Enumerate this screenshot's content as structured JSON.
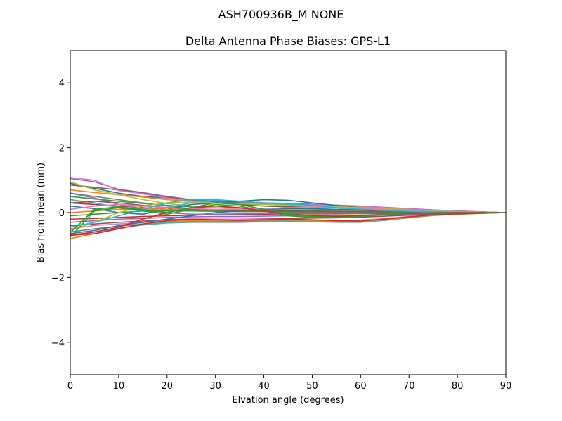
{
  "suptitle": "ASH700936B_M    NONE",
  "chart_data": {
    "type": "line",
    "title": "Delta Antenna Phase Biases: GPS-L1",
    "xlabel": "Elvation angle (degrees)",
    "ylabel": "Bias from mean (mm)",
    "xlim": [
      0,
      90
    ],
    "ylim": [
      -5,
      5
    ],
    "xticks": [
      0,
      10,
      20,
      30,
      40,
      50,
      60,
      70,
      80,
      90
    ],
    "yticks": [
      -4,
      -2,
      0,
      2,
      4
    ],
    "grid": false,
    "legend": "none",
    "x": [
      0,
      5,
      10,
      15,
      20,
      25,
      30,
      35,
      40,
      45,
      50,
      55,
      60,
      65,
      70,
      75,
      80,
      85,
      90
    ],
    "series": [
      {
        "color": "#1f77b4",
        "values": [
          0.9,
          0.75,
          0.6,
          0.5,
          0.45,
          0.38,
          0.32,
          0.3,
          0.28,
          0.27,
          0.25,
          0.22,
          0.18,
          0.15,
          0.12,
          0.08,
          0.05,
          0.02,
          0.0
        ]
      },
      {
        "color": "#ff7f0e",
        "values": [
          0.7,
          0.62,
          0.55,
          0.48,
          0.4,
          0.35,
          0.3,
          0.27,
          0.25,
          0.24,
          0.22,
          0.2,
          0.17,
          0.14,
          0.11,
          0.07,
          0.04,
          0.02,
          0.0
        ]
      },
      {
        "color": "#2ca02c",
        "values": [
          0.5,
          0.42,
          0.35,
          0.28,
          0.22,
          0.18,
          0.15,
          0.14,
          0.13,
          0.12,
          0.11,
          0.1,
          0.09,
          0.07,
          0.05,
          0.03,
          0.02,
          0.01,
          0.0
        ]
      },
      {
        "color": "#d62728",
        "values": [
          0.3,
          0.25,
          0.2,
          0.15,
          0.1,
          0.08,
          0.06,
          0.05,
          0.05,
          0.05,
          0.04,
          0.04,
          0.03,
          0.03,
          0.02,
          0.02,
          0.01,
          0.0,
          0.0
        ]
      },
      {
        "color": "#9467bd",
        "values": [
          1.05,
          0.95,
          0.72,
          0.62,
          0.5,
          0.4,
          0.35,
          0.32,
          0.3,
          0.28,
          0.26,
          0.23,
          0.2,
          0.16,
          0.12,
          0.08,
          0.05,
          0.02,
          0.0
        ]
      },
      {
        "color": "#8c564b",
        "values": [
          0.85,
          0.78,
          0.7,
          0.6,
          0.48,
          0.38,
          0.3,
          0.25,
          0.2,
          0.18,
          0.16,
          0.15,
          0.13,
          0.11,
          0.09,
          0.06,
          0.04,
          0.02,
          0.0
        ]
      },
      {
        "color": "#e377c2",
        "values": [
          1.08,
          1.0,
          0.68,
          0.58,
          0.45,
          0.36,
          0.3,
          0.28,
          0.26,
          0.25,
          0.24,
          0.22,
          0.19,
          0.15,
          0.11,
          0.07,
          0.04,
          0.02,
          0.0
        ]
      },
      {
        "color": "#7f7f7f",
        "values": [
          0.6,
          0.5,
          0.4,
          0.3,
          0.2,
          0.12,
          0.08,
          0.05,
          0.03,
          0.02,
          0.02,
          0.02,
          0.02,
          0.02,
          0.01,
          0.01,
          0.01,
          0.0,
          0.0
        ]
      },
      {
        "color": "#bcbd22",
        "values": [
          0.95,
          0.7,
          0.55,
          0.4,
          0.28,
          0.2,
          0.15,
          0.12,
          0.1,
          0.08,
          0.07,
          0.06,
          0.05,
          0.04,
          0.03,
          0.02,
          0.01,
          0.0,
          0.0
        ]
      },
      {
        "color": "#17becf",
        "values": [
          0.4,
          0.3,
          0.15,
          0.05,
          0.15,
          0.3,
          0.38,
          0.35,
          0.3,
          0.25,
          0.2,
          0.15,
          0.1,
          0.07,
          0.05,
          0.03,
          0.02,
          0.01,
          0.0
        ]
      },
      {
        "color": "#1f77b4",
        "values": [
          0.2,
          0.12,
          0.0,
          -0.05,
          0.1,
          0.25,
          0.3,
          0.35,
          0.4,
          0.38,
          0.3,
          0.22,
          0.15,
          0.1,
          0.06,
          0.03,
          0.02,
          0.01,
          0.0
        ]
      },
      {
        "color": "#ff7f0e",
        "values": [
          0.0,
          0.05,
          0.1,
          0.12,
          0.1,
          0.08,
          0.06,
          0.05,
          0.04,
          0.04,
          0.03,
          0.03,
          0.03,
          0.02,
          0.02,
          0.01,
          0.01,
          0.0,
          0.0
        ]
      },
      {
        "color": "#2ca02c",
        "values": [
          -0.1,
          -0.05,
          0.0,
          0.05,
          0.05,
          0.05,
          0.04,
          0.03,
          0.03,
          0.02,
          0.02,
          0.02,
          0.02,
          0.01,
          0.01,
          0.01,
          0.0,
          0.0,
          0.0
        ]
      },
      {
        "color": "#d62728",
        "values": [
          -0.2,
          -0.18,
          -0.15,
          -0.12,
          -0.1,
          -0.08,
          -0.06,
          -0.05,
          -0.05,
          -0.04,
          -0.04,
          -0.04,
          -0.03,
          -0.03,
          -0.02,
          -0.02,
          -0.01,
          0.0,
          0.0
        ]
      },
      {
        "color": "#9467bd",
        "values": [
          -0.3,
          -0.25,
          -0.2,
          -0.18,
          -0.15,
          -0.13,
          -0.12,
          -0.12,
          -0.11,
          -0.1,
          -0.1,
          -0.09,
          -0.08,
          -0.07,
          -0.05,
          -0.03,
          -0.02,
          -0.01,
          0.0
        ]
      },
      {
        "color": "#8c564b",
        "values": [
          -0.4,
          -0.35,
          -0.3,
          -0.26,
          -0.22,
          -0.2,
          -0.2,
          -0.2,
          -0.19,
          -0.18,
          -0.17,
          -0.16,
          -0.14,
          -0.11,
          -0.08,
          -0.05,
          -0.03,
          -0.01,
          0.0
        ]
      },
      {
        "color": "#e377c2",
        "values": [
          -0.5,
          -0.4,
          -0.35,
          -0.3,
          -0.25,
          -0.22,
          -0.2,
          -0.2,
          -0.2,
          -0.22,
          -0.24,
          -0.25,
          -0.23,
          -0.18,
          -0.12,
          -0.07,
          -0.04,
          -0.02,
          0.0
        ]
      },
      {
        "color": "#7f7f7f",
        "values": [
          -0.6,
          -0.5,
          -0.42,
          -0.35,
          -0.3,
          -0.28,
          -0.28,
          -0.27,
          -0.26,
          -0.26,
          -0.27,
          -0.28,
          -0.27,
          -0.21,
          -0.14,
          -0.08,
          -0.05,
          -0.02,
          0.0
        ]
      },
      {
        "color": "#bcbd22",
        "values": [
          -0.55,
          -0.3,
          0.0,
          0.2,
          0.3,
          0.32,
          0.3,
          0.28,
          0.25,
          0.22,
          0.2,
          0.18,
          0.15,
          0.12,
          0.08,
          0.05,
          0.03,
          0.01,
          0.0
        ]
      },
      {
        "color": "#17becf",
        "values": [
          -0.7,
          -0.6,
          -0.48,
          -0.38,
          -0.32,
          -0.3,
          -0.3,
          -0.3,
          -0.28,
          -0.27,
          -0.28,
          -0.3,
          -0.3,
          -0.24,
          -0.16,
          -0.09,
          -0.05,
          -0.02,
          0.0
        ]
      },
      {
        "color": "#1f77b4",
        "values": [
          -0.65,
          -0.55,
          -0.4,
          -0.3,
          -0.2,
          -0.1,
          0.0,
          0.05,
          0.1,
          0.12,
          0.12,
          0.1,
          0.08,
          0.06,
          0.04,
          0.02,
          0.01,
          0.0,
          0.0
        ]
      },
      {
        "color": "#ff7f0e",
        "values": [
          -0.8,
          -0.65,
          -0.5,
          -0.35,
          -0.28,
          -0.25,
          -0.25,
          -0.25,
          -0.24,
          -0.24,
          -0.25,
          -0.27,
          -0.28,
          -0.22,
          -0.15,
          -0.08,
          -0.05,
          -0.02,
          0.0
        ]
      },
      {
        "color": "#2ca02c",
        "values": [
          -0.75,
          0.05,
          0.15,
          0.05,
          -0.05,
          0.1,
          0.25,
          0.2,
          0.05,
          -0.1,
          -0.15,
          -0.15,
          -0.1,
          -0.05,
          -0.02,
          0.0,
          0.0,
          0.0,
          0.0
        ]
      },
      {
        "color": "#d62728",
        "values": [
          -0.7,
          -0.65,
          -0.5,
          -0.35,
          -0.25,
          -0.2,
          -0.22,
          -0.24,
          -0.22,
          -0.2,
          -0.22,
          -0.25,
          -0.26,
          -0.2,
          -0.13,
          -0.07,
          -0.04,
          -0.02,
          0.0
        ]
      },
      {
        "color": "#9467bd",
        "values": [
          0.6,
          0.45,
          0.25,
          0.1,
          0.0,
          -0.05,
          -0.05,
          -0.04,
          -0.03,
          -0.02,
          -0.02,
          -0.02,
          -0.02,
          -0.01,
          -0.01,
          0.0,
          0.0,
          0.0,
          0.0
        ]
      },
      {
        "color": "#8c564b",
        "values": [
          0.3,
          0.35,
          0.3,
          0.22,
          0.15,
          0.1,
          0.08,
          0.06,
          0.05,
          0.05,
          0.05,
          0.04,
          0.04,
          0.03,
          0.02,
          0.01,
          0.01,
          0.0,
          0.0
        ]
      },
      {
        "color": "#e377c2",
        "values": [
          0.1,
          0.2,
          0.25,
          0.2,
          0.15,
          0.12,
          0.1,
          0.1,
          0.12,
          0.15,
          0.16,
          0.15,
          0.12,
          0.09,
          0.06,
          0.03,
          0.02,
          0.01,
          0.0
        ]
      },
      {
        "color": "#17becf",
        "values": [
          -0.45,
          -0.3,
          -0.1,
          0.1,
          0.3,
          0.4,
          0.4,
          0.35,
          0.3,
          0.28,
          0.22,
          0.15,
          0.1,
          0.06,
          0.04,
          0.02,
          0.01,
          0.0,
          0.0
        ]
      },
      {
        "color": "#d62728",
        "values": [
          -0.7,
          -0.6,
          -0.45,
          -0.2,
          0.0,
          0.15,
          0.2,
          0.15,
          0.05,
          -0.05,
          -0.1,
          -0.12,
          -0.1,
          -0.06,
          -0.03,
          -0.01,
          0.0,
          0.0,
          0.0
        ]
      },
      {
        "color": "#2ca02c",
        "values": [
          -0.62,
          0.1,
          0.18,
          0.08,
          0.0,
          0.15,
          0.3,
          0.25,
          0.1,
          -0.05,
          -0.12,
          -0.15,
          -0.12,
          -0.06,
          -0.02,
          0.0,
          0.0,
          0.0,
          0.0
        ]
      }
    ]
  }
}
